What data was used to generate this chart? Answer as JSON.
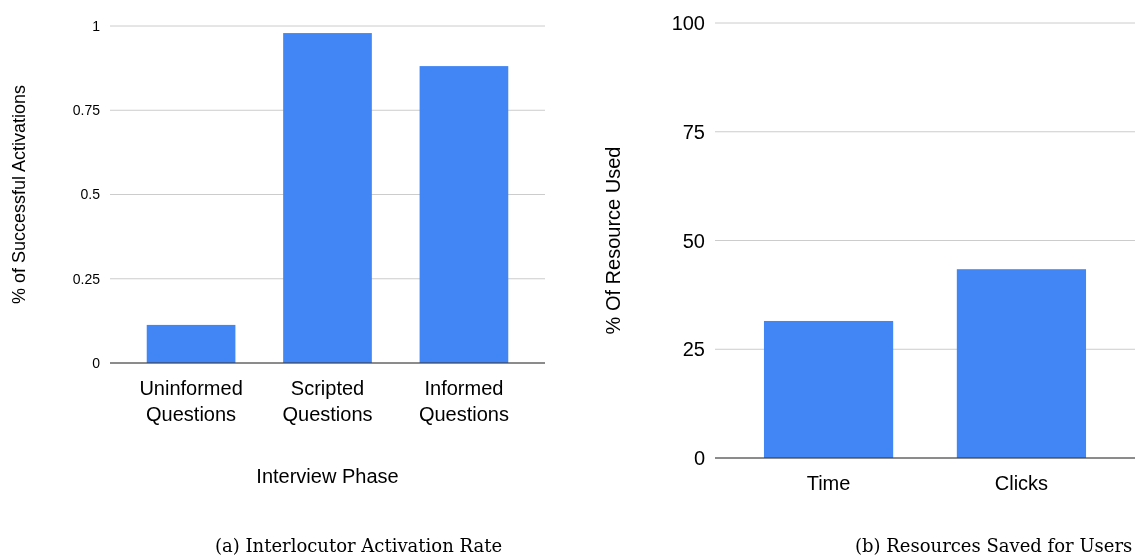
{
  "chart_data": [
    {
      "type": "bar",
      "categories": [
        "Uninformed Questions",
        "Scripted Questions",
        "Informed Questions"
      ],
      "values": [
        0.113,
        0.979,
        0.881
      ],
      "color": "#4285f4",
      "xlabel": "Interview Phase",
      "ylabel": "% of Successful Activations",
      "ylim": [
        0,
        1
      ],
      "yticks": [
        0,
        0.25,
        0.5,
        0.75,
        1
      ],
      "grid": "y",
      "annotations": [
        "(a) Interlocutor Activation Rate"
      ]
    },
    {
      "type": "bar",
      "categories": [
        "Time",
        "Clicks"
      ],
      "values": [
        31.5,
        43.4
      ],
      "color": "#4285f4",
      "ylabel": "% Of Resource Used",
      "ylim": [
        0,
        100
      ],
      "yticks": [
        0,
        25,
        50,
        75,
        100
      ],
      "grid": "y",
      "annotations": [
        "(b) Resources Saved for Users"
      ]
    }
  ]
}
